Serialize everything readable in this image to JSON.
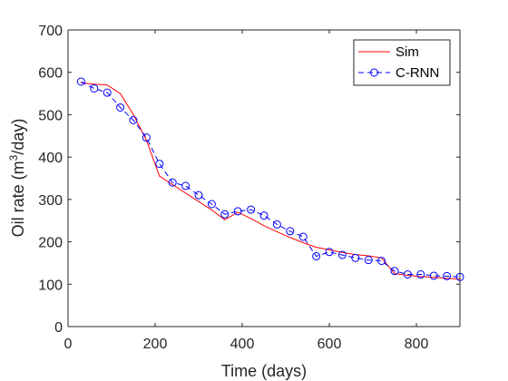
{
  "chart_data": {
    "type": "line",
    "xlabel": "Time (days)",
    "ylabel_main": "Oil rate (m",
    "ylabel_sup": "3",
    "ylabel_tail": "/day)",
    "xlim": [
      0,
      900
    ],
    "ylim": [
      0,
      700
    ],
    "xticks": [
      0,
      200,
      400,
      600,
      800
    ],
    "yticks": [
      0,
      100,
      200,
      300,
      400,
      500,
      600,
      700
    ],
    "legend_position": "top-right",
    "grid": false,
    "series": [
      {
        "name": "Sim",
        "color": "#ff0000",
        "style": "solid",
        "marker": "none",
        "x": [
          30,
          60,
          90,
          120,
          150,
          180,
          210,
          240,
          270,
          300,
          330,
          360,
          390,
          420,
          450,
          480,
          510,
          540,
          570,
          600,
          630,
          660,
          690,
          720,
          750,
          780,
          810,
          840,
          870,
          900
        ],
        "y": [
          575,
          572,
          570,
          550,
          500,
          440,
          355,
          335,
          315,
          295,
          275,
          252,
          270,
          255,
          238,
          224,
          210,
          198,
          187,
          181,
          175,
          170,
          167,
          162,
          125,
          121,
          118,
          116,
          114,
          112
        ]
      },
      {
        "name": "C-RNN",
        "color": "#0000ff",
        "style": "dashed",
        "marker": "circle",
        "x": [
          30,
          60,
          90,
          120,
          150,
          180,
          210,
          240,
          270,
          300,
          330,
          360,
          390,
          420,
          450,
          480,
          510,
          540,
          570,
          600,
          630,
          660,
          690,
          720,
          750,
          780,
          810,
          840,
          870,
          900
        ],
        "y": [
          578,
          562,
          552,
          517,
          487,
          446,
          384,
          340,
          332,
          310,
          289,
          265,
          272,
          276,
          262,
          241,
          225,
          212,
          166,
          176,
          169,
          162,
          157,
          155,
          131,
          123,
          123,
          120,
          119,
          117
        ]
      }
    ]
  }
}
